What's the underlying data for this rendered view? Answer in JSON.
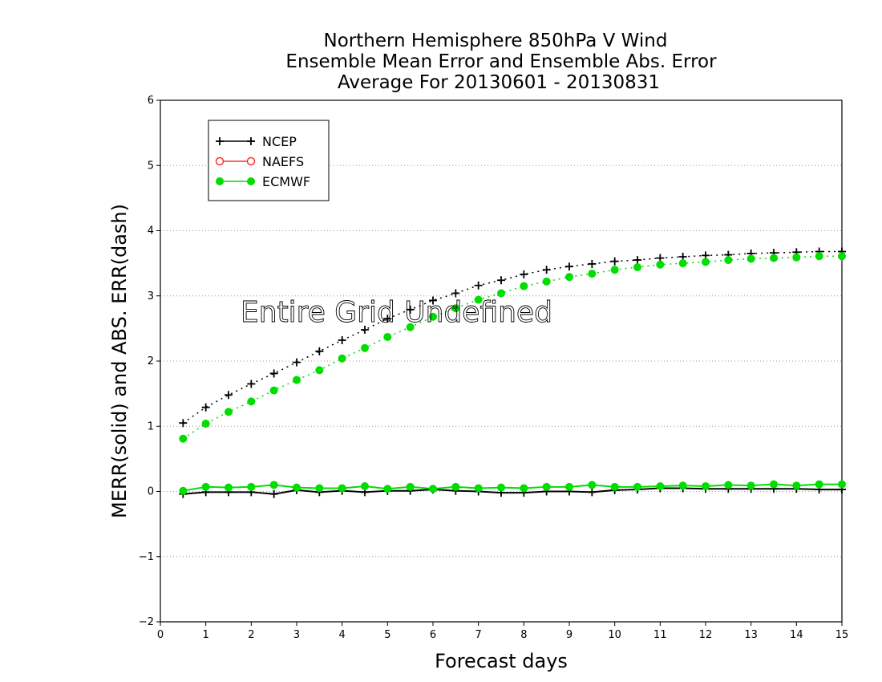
{
  "chart_data": {
    "type": "line",
    "title": [
      "Northern Hemisphere 850hPa V Wind",
      "Ensemble Mean Error and Ensemble Abs. Error",
      "Average For 20130601 - 20130831"
    ],
    "xlabel": "Forecast days",
    "ylabel": "MERR(solid) and ABS. ERR(dash)",
    "xlim": [
      0,
      15
    ],
    "ylim": [
      -2,
      6
    ],
    "x_ticks": [
      0,
      1,
      2,
      3,
      4,
      5,
      6,
      7,
      8,
      9,
      10,
      11,
      12,
      13,
      14,
      15
    ],
    "y_ticks": [
      -2,
      -1,
      0,
      1,
      2,
      3,
      4,
      5,
      6
    ],
    "grid": "horizontal dotted",
    "legend_position": "top-left",
    "annotation": "Entire Grid Undefined",
    "x": [
      0.5,
      1,
      1.5,
      2,
      2.5,
      3,
      3.5,
      4,
      4.5,
      5,
      5.5,
      6,
      6.5,
      7,
      7.5,
      8,
      8.5,
      9,
      9.5,
      10,
      10.5,
      11,
      11.5,
      12,
      12.5,
      13,
      13.5,
      14,
      14.5,
      15
    ],
    "series": [
      {
        "name": "NCEP",
        "color": "#000000",
        "marker": "plus",
        "merr": [
          -0.04,
          -0.01,
          -0.01,
          -0.01,
          -0.04,
          0.02,
          -0.01,
          0.01,
          -0.01,
          0.01,
          0.01,
          0.03,
          0.01,
          0.0,
          -0.02,
          -0.02,
          0.0,
          0.0,
          -0.01,
          0.02,
          0.03,
          0.05,
          0.05,
          0.04,
          0.04,
          0.04,
          0.04,
          0.04,
          0.03,
          0.03
        ],
        "abs_err": [
          1.05,
          1.29,
          1.48,
          1.65,
          1.81,
          1.98,
          2.15,
          2.32,
          2.48,
          2.65,
          2.79,
          2.93,
          3.04,
          3.16,
          3.24,
          3.33,
          3.4,
          3.45,
          3.49,
          3.53,
          3.55,
          3.58,
          3.6,
          3.62,
          3.63,
          3.65,
          3.66,
          3.67,
          3.68,
          3.68
        ]
      },
      {
        "name": "NAEFS",
        "color": "#ff3030",
        "marker": "open-circle",
        "merr": [],
        "abs_err": []
      },
      {
        "name": "ECMWF",
        "color": "#00dd00",
        "marker": "filled-circle",
        "merr": [
          0.01,
          0.07,
          0.06,
          0.07,
          0.1,
          0.06,
          0.05,
          0.05,
          0.08,
          0.04,
          0.07,
          0.04,
          0.07,
          0.05,
          0.06,
          0.05,
          0.07,
          0.07,
          0.1,
          0.07,
          0.07,
          0.08,
          0.09,
          0.08,
          0.1,
          0.09,
          0.11,
          0.09,
          0.11,
          0.11
        ],
        "abs_err": [
          0.81,
          1.04,
          1.22,
          1.38,
          1.55,
          1.71,
          1.86,
          2.04,
          2.2,
          2.37,
          2.52,
          2.68,
          2.81,
          2.94,
          3.04,
          3.15,
          3.22,
          3.29,
          3.34,
          3.4,
          3.44,
          3.48,
          3.5,
          3.52,
          3.55,
          3.57,
          3.58,
          3.59,
          3.61,
          3.61
        ]
      }
    ]
  }
}
